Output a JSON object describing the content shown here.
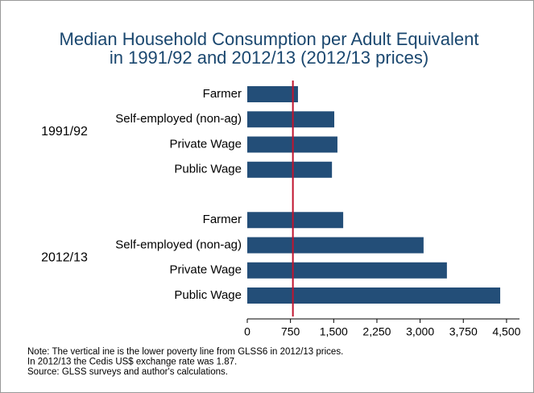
{
  "chart_data": {
    "type": "grouped-hbar",
    "title": [
      "Median Household Consumption per Adult Equivalent",
      "in 1991/92 and 2012/13 (2012/13 prices)"
    ],
    "groups": [
      {
        "label": "1991/92",
        "categories": [
          "Farmer",
          "Self-employed (non-ag)",
          "Private Wage",
          "Public Wage"
        ],
        "values": [
          880,
          1510,
          1565,
          1470
        ]
      },
      {
        "label": "2012/13",
        "categories": [
          "Farmer",
          "Self-employed (non-ag)",
          "Private Wage",
          "Public Wage"
        ],
        "values": [
          1665,
          3060,
          3465,
          4390
        ]
      }
    ],
    "color": "#234e78",
    "reference_line": {
      "value": 792,
      "color": "#c0142f"
    },
    "xlim": [
      0,
      4725
    ],
    "xticks": [
      0,
      750,
      {
        "value": 1500,
        "label": "1,500"
      },
      {
        "value": 2250,
        "label": "2,250"
      },
      {
        "value": 3000,
        "label": "3,000"
      },
      {
        "value": 3750,
        "label": "3,750"
      },
      {
        "value": 4500,
        "label": "4,500"
      }
    ],
    "notes": [
      "Note: The vertical ine is the lower poverty line from GLSS6 in 2012/13 prices.",
      "In 2012/13 the Cedis US$ exchange rate was 1.87.",
      "Source: GLSS surveys and author's calculations."
    ]
  }
}
